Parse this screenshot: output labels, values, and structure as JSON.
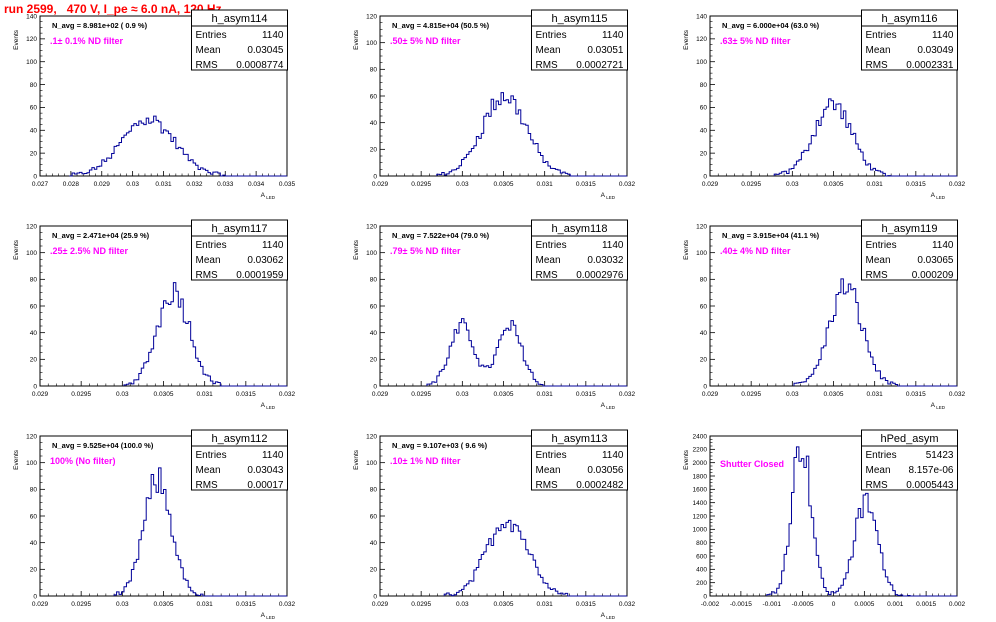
{
  "page_title": "run 2599,   470 V, I_pe ≈ 6.0 nA, 120 Hz",
  "stat_labels": {
    "entries": "Entries",
    "mean": "Mean",
    "rms": "RMS"
  },
  "chart_data": [
    {
      "type": "histogram",
      "name": "h_asym114",
      "ylabel": "Events",
      "xlabel": "A_LED",
      "xlim": [
        0.027,
        0.035
      ],
      "ylim": [
        0,
        140
      ],
      "xticks": [
        "0.027",
        "0.028",
        "0.029",
        "0.03",
        "0.031",
        "0.032",
        "0.033",
        "0.034",
        "0.035"
      ],
      "yticks": [
        "0",
        "20",
        "40",
        "60",
        "80",
        "100",
        "120",
        "140"
      ],
      "nbins": 100,
      "n_avg": "N_avg = 8.981e+02 ( 0.9 %)",
      "filter": ".1± 0.1% ND filter",
      "stats": {
        "entries": "1140",
        "mean": "0.03045",
        "rms": "0.0008774"
      },
      "peaks": [
        {
          "center": 0.0305,
          "height": 50,
          "width": 0.00085
        }
      ]
    },
    {
      "type": "histogram",
      "name": "h_asym115",
      "ylabel": "Events",
      "xlabel": "A_LED",
      "xlim": [
        0.029,
        0.032
      ],
      "ylim": [
        0,
        120
      ],
      "xticks": [
        "0.029",
        "0.0295",
        "0.03",
        "0.0305",
        "0.031",
        "0.0315",
        "0.032"
      ],
      "yticks": [
        "0",
        "20",
        "40",
        "60",
        "80",
        "100",
        "120"
      ],
      "nbins": 100,
      "n_avg": "N_avg = 4.815e+04 (50.5 %)",
      "filter": ".50± 5% ND filter",
      "stats": {
        "entries": "1140",
        "mean": "0.03051",
        "rms": "0.0002721"
      },
      "peaks": [
        {
          "center": 0.03051,
          "height": 60,
          "width": 0.00027
        }
      ]
    },
    {
      "type": "histogram",
      "name": "h_asym116",
      "ylabel": "Events",
      "xlabel": "A_LED",
      "xlim": [
        0.029,
        0.032
      ],
      "ylim": [
        0,
        140
      ],
      "xticks": [
        "0.029",
        "0.0295",
        "0.03",
        "0.0305",
        "0.031",
        "0.0315",
        "0.032"
      ],
      "yticks": [
        "0",
        "20",
        "40",
        "60",
        "80",
        "100",
        "120",
        "140"
      ],
      "nbins": 100,
      "n_avg": "N_avg = 6.000e+04 (63.0 %)",
      "filter": ".63± 5% ND filter",
      "stats": {
        "entries": "1140",
        "mean": "0.03049",
        "rms": "0.0002331"
      },
      "peaks": [
        {
          "center": 0.03049,
          "height": 63,
          "width": 0.00023
        }
      ]
    },
    {
      "type": "histogram",
      "name": "h_asym117",
      "ylabel": "Events",
      "xlabel": "A_LED",
      "xlim": [
        0.029,
        0.032
      ],
      "ylim": [
        0,
        120
      ],
      "xticks": [
        "0.029",
        "0.0295",
        "0.03",
        "0.0305",
        "0.031",
        "0.0315",
        "0.032"
      ],
      "yticks": [
        "0",
        "20",
        "40",
        "60",
        "80",
        "100",
        "120"
      ],
      "nbins": 100,
      "n_avg": "N_avg = 2.471e+04 (25.9 %)",
      "filter": ".25± 2.5% ND filter",
      "stats": {
        "entries": "1140",
        "mean": "0.03062",
        "rms": "0.0001959"
      },
      "peaks": [
        {
          "center": 0.03062,
          "height": 72,
          "width": 0.000196
        }
      ]
    },
    {
      "type": "histogram",
      "name": "h_asym118",
      "ylabel": "Events",
      "xlabel": "A_LED",
      "xlim": [
        0.029,
        0.032
      ],
      "ylim": [
        0,
        120
      ],
      "xticks": [
        "0.029",
        "0.0295",
        "0.03",
        "0.0305",
        "0.031",
        "0.0315",
        "0.032"
      ],
      "yticks": [
        "0",
        "20",
        "40",
        "60",
        "80",
        "100",
        "120"
      ],
      "nbins": 100,
      "n_avg": "N_avg = 7.522e+04 (79.0 %)",
      "filter": ".79± 5% ND filter",
      "stats": {
        "entries": "1140",
        "mean": "0.03032",
        "rms": "0.0002976"
      },
      "peaks": [
        {
          "center": 0.03,
          "height": 44,
          "width": 0.00015
        },
        {
          "center": 0.03058,
          "height": 44,
          "width": 0.00015
        }
      ]
    },
    {
      "type": "histogram",
      "name": "h_asym119",
      "ylabel": "Events",
      "xlabel": "A_LED",
      "xlim": [
        0.029,
        0.032
      ],
      "ylim": [
        0,
        120
      ],
      "xticks": [
        "0.029",
        "0.0295",
        "0.03",
        "0.0305",
        "0.031",
        "0.0315",
        "0.032"
      ],
      "yticks": [
        "0",
        "20",
        "40",
        "60",
        "80",
        "100",
        "120"
      ],
      "nbins": 100,
      "n_avg": "N_avg = 3.915e+04 (41.1 %)",
      "filter": ".40± 4% ND filter",
      "stats": {
        "entries": "1140",
        "mean": "0.03065",
        "rms": "0.000209"
      },
      "peaks": [
        {
          "center": 0.03065,
          "height": 74,
          "width": 0.0002
        }
      ]
    },
    {
      "type": "histogram",
      "name": "h_asym112",
      "ylabel": "Events",
      "xlabel": "A_LED",
      "xlim": [
        0.029,
        0.032
      ],
      "ylim": [
        0,
        120
      ],
      "xticks": [
        "0.029",
        "0.0295",
        "0.03",
        "0.0305",
        "0.031",
        "0.0315",
        "0.032"
      ],
      "yticks": [
        "0",
        "20",
        "40",
        "60",
        "80",
        "100",
        "120"
      ],
      "nbins": 100,
      "n_avg": "N_avg = 9.525e+04 (100.0 %)",
      "filter": "100% (No filter)",
      "stats": {
        "entries": "1140",
        "mean": "0.03043",
        "rms": "0.00017"
      },
      "peaks": [
        {
          "center": 0.03043,
          "height": 86,
          "width": 0.00017
        }
      ]
    },
    {
      "type": "histogram",
      "name": "h_asym113",
      "ylabel": "Events",
      "xlabel": "A_LED",
      "xlim": [
        0.029,
        0.032
      ],
      "ylim": [
        0,
        120
      ],
      "xticks": [
        "0.029",
        "0.0295",
        "0.03",
        "0.0305",
        "0.031",
        "0.0315",
        "0.032"
      ],
      "yticks": [
        "0",
        "20",
        "40",
        "60",
        "80",
        "100",
        "120"
      ],
      "nbins": 100,
      "n_avg": "N_avg = 9.107e+03 ( 9.6 %)",
      "filter": ".10± 1% ND filter",
      "stats": {
        "entries": "1140",
        "mean": "0.03056",
        "rms": "0.0002482"
      },
      "peaks": [
        {
          "center": 0.03055,
          "height": 58,
          "width": 0.00025
        }
      ]
    },
    {
      "type": "histogram",
      "name": "hPed_asym",
      "ylabel": "Events",
      "xlabel": "",
      "xlim": [
        -0.002,
        0.002
      ],
      "ylim": [
        0,
        2400
      ],
      "xticks": [
        "-0.002",
        "-0.0015",
        "-0.001",
        "-0.0005",
        "0",
        "0.0005",
        "0.001",
        "0.0015",
        "0.002"
      ],
      "yticks": [
        "0",
        "200",
        "400",
        "600",
        "800",
        "1000",
        "1200",
        "1400",
        "1600",
        "1800",
        "2000",
        "2200",
        "2400"
      ],
      "nbins": 100,
      "n_avg": "",
      "filter": "Shutter Closed",
      "stats": {
        "entries": "51423",
        "mean": "8.157e-06",
        "rms": "0.0005443"
      },
      "peaks": [
        {
          "center": -0.00052,
          "height": 2300,
          "width": 0.00016
        },
        {
          "center": 0.00053,
          "height": 1400,
          "width": 0.00019
        }
      ]
    }
  ]
}
